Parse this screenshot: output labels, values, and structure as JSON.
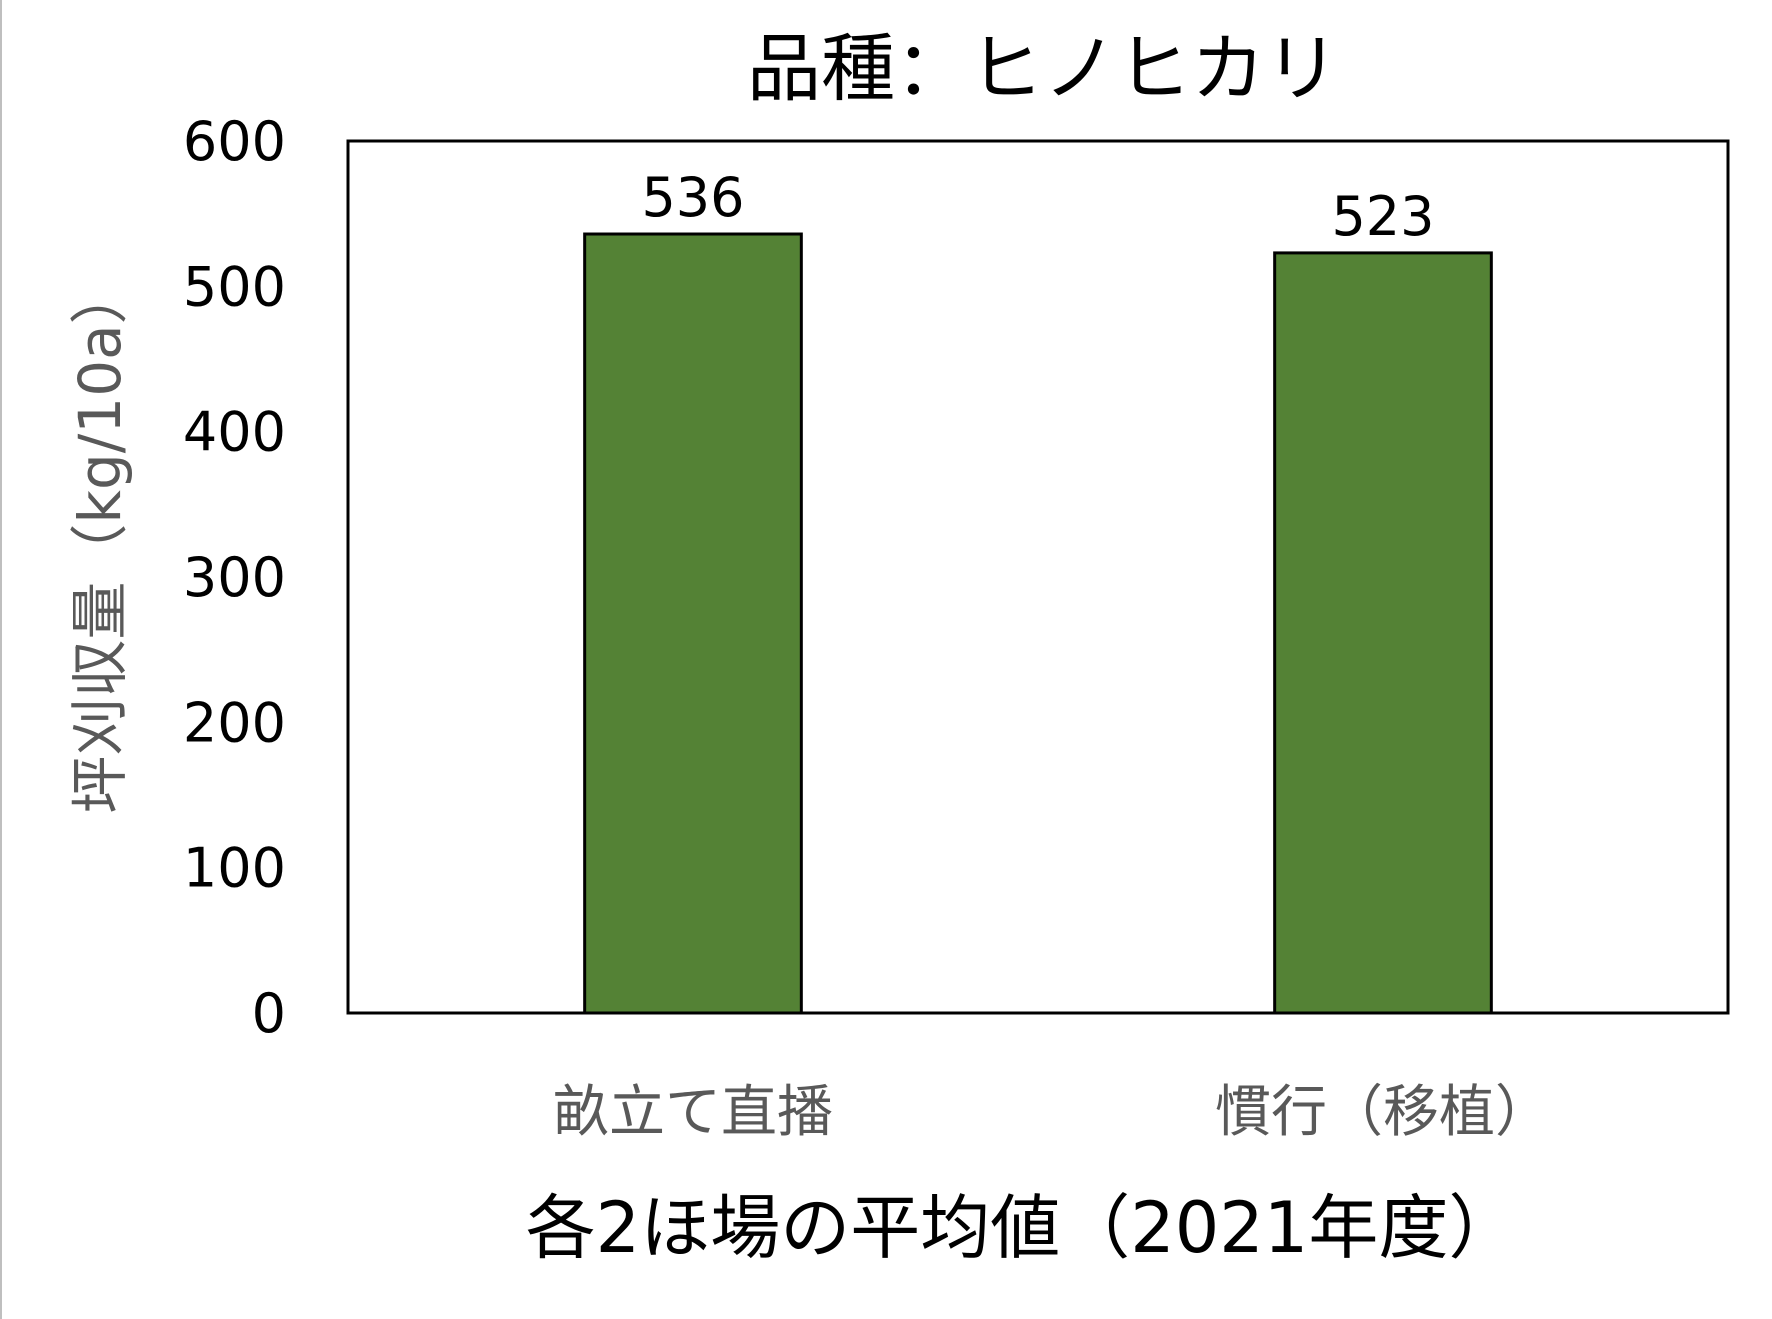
{
  "chart_data": {
    "type": "bar",
    "title": "品種：ヒノヒカリ",
    "xlabel": "各2ほ場の平均値（2021年度）",
    "ylabel": "坪刈収量（kg/10a）",
    "categories": [
      "畝立て直播",
      "慣行（移植）"
    ],
    "values": [
      536,
      523
    ],
    "data_labels": [
      "536",
      "523"
    ],
    "ylim": [
      0,
      600
    ],
    "yticks": [
      0,
      100,
      200,
      300,
      400,
      500,
      600
    ],
    "ytick_labels": [
      "0",
      "100",
      "200",
      "300",
      "400",
      "500",
      "600"
    ],
    "grid": false,
    "legend": "none",
    "bar_color": "#548235",
    "bar_edge_color": "#000000"
  }
}
